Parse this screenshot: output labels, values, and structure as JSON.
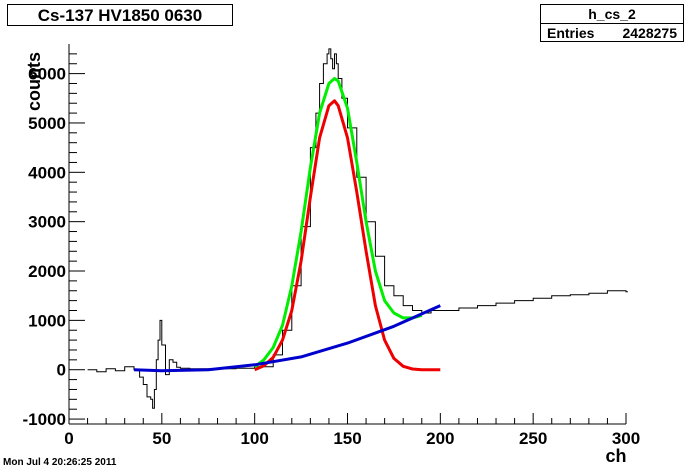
{
  "title": "Cs-137 HV1850 0630",
  "stats": {
    "name": "h_cs_2",
    "entries_label": "Entries",
    "entries_value": "2428275"
  },
  "date": "Mon Jul  4 20:26:25 2011",
  "chart_data": {
    "type": "line",
    "xlabel": "ch",
    "ylabel": "counts",
    "xlim": [
      0,
      300
    ],
    "ylim": [
      -1100,
      6600
    ],
    "x_ticks": [
      0,
      50,
      100,
      150,
      200,
      250,
      300
    ],
    "y_ticks": [
      -1000,
      0,
      1000,
      2000,
      3000,
      4000,
      5000,
      6000
    ],
    "grid": false,
    "histogram": {
      "name": "h_cs_2",
      "color": "#000000",
      "bin_width": 1,
      "x": [
        10,
        15,
        20,
        25,
        30,
        35,
        38,
        40,
        42,
        44,
        45,
        46,
        47,
        48,
        49,
        50,
        52,
        54,
        56,
        58,
        60,
        65,
        70,
        80,
        90,
        100,
        110,
        115,
        120,
        125,
        130,
        133,
        135,
        137,
        139,
        140,
        141,
        142,
        143,
        144,
        145,
        147,
        150,
        155,
        160,
        165,
        170,
        175,
        180,
        185,
        190,
        195,
        200,
        210,
        220,
        230,
        240,
        250,
        260,
        270,
        280,
        290,
        300
      ],
      "values": [
        0,
        -40,
        20,
        -20,
        60,
        0,
        -150,
        -300,
        -550,
        -600,
        -780,
        -400,
        200,
        600,
        1000,
        500,
        -100,
        200,
        150,
        50,
        30,
        20,
        20,
        20,
        30,
        60,
        300,
        800,
        1700,
        2900,
        4500,
        5200,
        5800,
        6200,
        6400,
        6500,
        6300,
        6100,
        6400,
        6200,
        5900,
        5500,
        4900,
        3900,
        3000,
        2300,
        1700,
        1500,
        1300,
        1200,
        1150,
        1200,
        1200,
        1250,
        1300,
        1350,
        1400,
        1450,
        1500,
        1520,
        1550,
        1600,
        1580
      ]
    },
    "series": [
      {
        "name": "",
        "color": "#00ee00",
        "x": [
          100,
          105,
          110,
          115,
          120,
          125,
          130,
          135,
          140,
          143,
          145,
          150,
          155,
          160,
          165,
          170,
          175,
          180,
          185,
          190
        ],
        "values": [
          60,
          200,
          450,
          900,
          1700,
          2800,
          4100,
          5200,
          5800,
          5900,
          5850,
          5300,
          4200,
          3000,
          2000,
          1400,
          1150,
          1050,
          1050,
          1100
        ]
      },
      {
        "name": "",
        "color": "#ee0000",
        "x": [
          100,
          105,
          110,
          115,
          120,
          125,
          130,
          135,
          140,
          143,
          145,
          150,
          155,
          160,
          165,
          170,
          175,
          180,
          185,
          190,
          195,
          200
        ],
        "values": [
          0,
          80,
          250,
          600,
          1200,
          2200,
          3500,
          4700,
          5350,
          5450,
          5350,
          4700,
          3600,
          2400,
          1300,
          600,
          230,
          70,
          15,
          0,
          0,
          0
        ]
      },
      {
        "name": "",
        "color": "#0000cc",
        "x": [
          35,
          50,
          75,
          100,
          125,
          150,
          175,
          200
        ],
        "values": [
          0,
          -20,
          0,
          100,
          260,
          540,
          880,
          1300
        ]
      }
    ]
  }
}
